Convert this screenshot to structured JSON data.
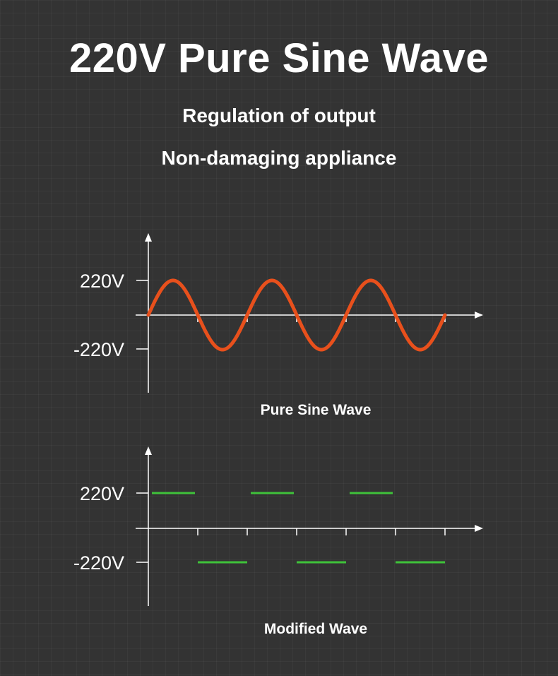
{
  "header": {
    "title": "220V Pure Sine Wave",
    "line1": "Regulation of output",
    "line2": "Non-damaging appliance"
  },
  "sine_chart": {
    "y_top_label": "220V",
    "y_bottom_label": "-220V",
    "caption": "Pure Sine Wave",
    "wave_color": "#e8501c",
    "cycles": 3
  },
  "modified_chart": {
    "y_top_label": "220V",
    "y_bottom_label": "-220V",
    "caption": "Modified Wave",
    "wave_color": "#3fc23a",
    "cycles": 3
  }
}
